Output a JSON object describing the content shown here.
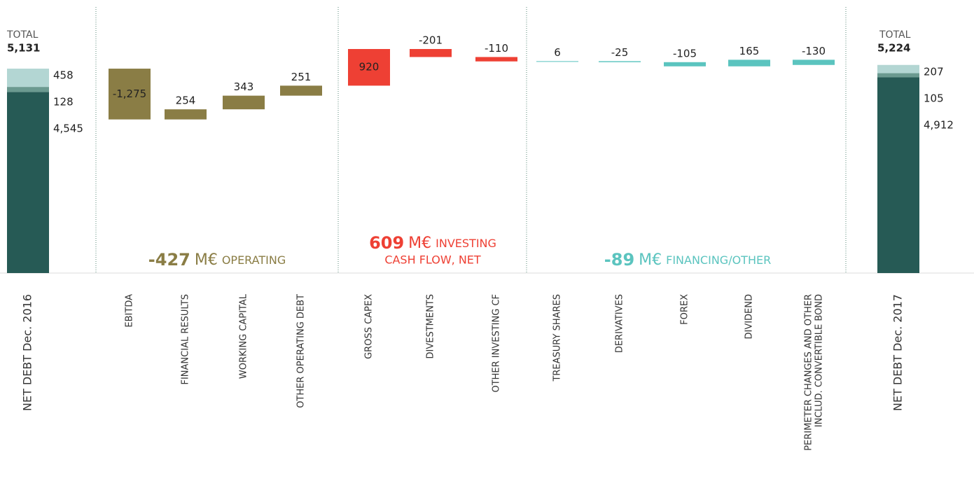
{
  "chart_data": {
    "type": "waterfall",
    "totals": [
      {
        "category": "NET DEBT  Dec. 2016",
        "label": "TOTAL",
        "total": 5131,
        "total_label": "5,131",
        "segments": [
          {
            "value": 4545,
            "value_label": "4,545",
            "color": "#265a55"
          },
          {
            "value": 128,
            "color": "#6b9a90"
          },
          {
            "value": 458,
            "color": "#b3d6d3"
          }
        ]
      },
      {
        "category": "NET DEBT  Dec. 2017",
        "label": "TOTAL",
        "total": 5224,
        "total_label": "5,224",
        "segments": [
          {
            "value": 4912,
            "value_label": "4,912",
            "color": "#265a55"
          },
          {
            "value": 105,
            "color": "#6b9a90"
          },
          {
            "value": 207,
            "color": "#b3d6d3"
          }
        ]
      }
    ],
    "groups": [
      {
        "value": -427,
        "unit": "M€",
        "label": [
          "OPERATING"
        ],
        "color": "#8a7d45"
      },
      {
        "value": 609,
        "unit": "M€",
        "label": [
          "INVESTING",
          "CASH FLOW, NET"
        ],
        "color": "#ee4034"
      },
      {
        "value": -89,
        "unit": "M€",
        "label": [
          "FINANCING/OTHER"
        ],
        "color": "#5bc4bf"
      }
    ],
    "steps": [
      {
        "category": "EBITDA",
        "value": -1275,
        "value_label": "-1,275",
        "group": 0
      },
      {
        "category": "FINANCIAL RESULTS",
        "value": 254,
        "group": 0
      },
      {
        "category": "WORKING CAPITAL",
        "value": 343,
        "group": 0
      },
      {
        "category": "OTHER OPERATING DEBT",
        "value": 251,
        "group": 0
      },
      {
        "category": "GROSS CAPEX",
        "value": 920,
        "group": 1
      },
      {
        "category": "DIVESTMENTS",
        "value": -201,
        "group": 1
      },
      {
        "category": "OTHER INVESTING CF",
        "value": -110,
        "group": 1
      },
      {
        "category": "TREASURY SHARES",
        "value": 6,
        "group": 2
      },
      {
        "category": "DERIVATIVES",
        "value": -25,
        "group": 2
      },
      {
        "category": "FOREX",
        "value": -105,
        "group": 2
      },
      {
        "category": "DIVIDEND",
        "value": 165,
        "group": 2
      },
      {
        "category": [
          "PERIMETER CHANGES AND OTHER",
          "INCLUD. CONVERTIBLE BOND"
        ],
        "value": -130,
        "group": 2
      }
    ]
  }
}
